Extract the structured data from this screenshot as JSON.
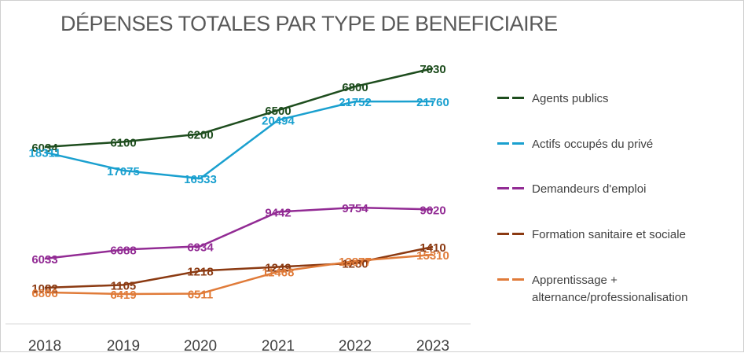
{
  "chart_data": {
    "type": "line",
    "title": "DÉPENSES TOTALES PAR TYPE DE BENEFICIAIRE",
    "x": [
      "2018",
      "2019",
      "2020",
      "2021",
      "2022",
      "2023"
    ],
    "legend_position": "right",
    "grid": false,
    "series": [
      {
        "name": "Agents publics",
        "color": "#1e4d1e",
        "values": [
          6034,
          6100,
          6200,
          6500,
          6800,
          7030
        ]
      },
      {
        "name": "Actifs occupés du privé",
        "color": "#1aa0cf",
        "values": [
          18311,
          17075,
          16533,
          20494,
          21752,
          21760
        ]
      },
      {
        "name": "Demandeurs d'emploi",
        "color": "#922b94",
        "values": [
          6033,
          6688,
          6934,
          9442,
          9754,
          9620
        ]
      },
      {
        "name": "Formation sanitaire et sociale",
        "color": "#8b3a12",
        "values": [
          1082,
          1105,
          1218,
          1249,
          1280,
          1410
        ]
      },
      {
        "name": "Apprentissage + alternance/professionalisation",
        "color": "#e07b39",
        "values": [
          6806,
          6419,
          6511,
          11468,
          13877,
          15310
        ]
      }
    ]
  }
}
